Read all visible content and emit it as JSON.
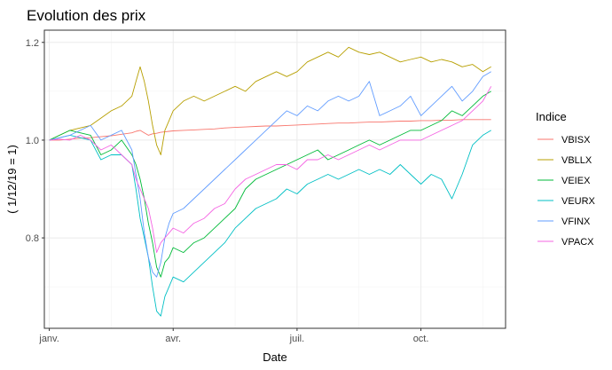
{
  "chart_data": {
    "type": "line",
    "title": "Evolution des prix",
    "xlabel": "Date",
    "ylabel": "( 1/12/19 = 1)",
    "x_ticks": [
      "janv.",
      "avr.",
      "juil.",
      "oct."
    ],
    "x_tick_months": [
      0,
      3,
      6,
      9
    ],
    "xlim_months": [
      -0.12,
      11.05
    ],
    "ylim": [
      0.615,
      1.225
    ],
    "y_ticks": [
      0.8,
      1.0,
      1.2
    ],
    "y_tick_labels": [
      "0.8",
      "1.0",
      "1.2"
    ],
    "grid": true,
    "legend_title": "Indice",
    "legend_position": "right",
    "x_months": [
      0,
      0.25,
      0.5,
      0.75,
      1.0,
      1.25,
      1.5,
      1.75,
      2.0,
      2.1,
      2.2,
      2.3,
      2.4,
      2.5,
      2.6,
      2.7,
      2.8,
      2.9,
      3.0,
      3.25,
      3.5,
      3.75,
      4.0,
      4.25,
      4.5,
      4.75,
      5.0,
      5.25,
      5.5,
      5.75,
      6.0,
      6.25,
      6.5,
      6.75,
      7.0,
      7.25,
      7.5,
      7.75,
      8.0,
      8.25,
      8.5,
      8.75,
      9.0,
      9.25,
      9.5,
      9.75,
      10.0,
      10.25,
      10.5,
      10.7
    ],
    "series": [
      {
        "name": "VBISX",
        "color": "#F8766D",
        "values": [
          1.0,
          1.0,
          1.002,
          1.004,
          1.005,
          1.007,
          1.009,
          1.012,
          1.015,
          1.018,
          1.02,
          1.015,
          1.01,
          1.013,
          1.014,
          1.016,
          1.017,
          1.018,
          1.019,
          1.02,
          1.021,
          1.022,
          1.023,
          1.025,
          1.026,
          1.027,
          1.028,
          1.029,
          1.029,
          1.03,
          1.031,
          1.032,
          1.033,
          1.034,
          1.035,
          1.035,
          1.036,
          1.037,
          1.037,
          1.038,
          1.039,
          1.039,
          1.04,
          1.04,
          1.041,
          1.041,
          1.042,
          1.042,
          1.042,
          1.042
        ]
      },
      {
        "name": "VBLLX",
        "color": "#B79F00",
        "values": [
          1.0,
          1.01,
          1.02,
          1.025,
          1.03,
          1.045,
          1.06,
          1.07,
          1.09,
          1.12,
          1.15,
          1.12,
          1.08,
          1.03,
          0.99,
          0.97,
          1.02,
          1.04,
          1.06,
          1.08,
          1.09,
          1.08,
          1.09,
          1.1,
          1.11,
          1.1,
          1.12,
          1.13,
          1.14,
          1.13,
          1.14,
          1.16,
          1.17,
          1.18,
          1.17,
          1.19,
          1.18,
          1.175,
          1.18,
          1.17,
          1.16,
          1.165,
          1.17,
          1.16,
          1.165,
          1.16,
          1.15,
          1.155,
          1.14,
          1.15
        ]
      },
      {
        "name": "VEIEX",
        "color": "#00BA38",
        "values": [
          1.0,
          1.01,
          1.02,
          1.015,
          1.01,
          0.97,
          0.98,
          1.0,
          0.97,
          0.95,
          0.92,
          0.88,
          0.83,
          0.79,
          0.74,
          0.72,
          0.75,
          0.76,
          0.78,
          0.77,
          0.79,
          0.8,
          0.82,
          0.84,
          0.86,
          0.9,
          0.92,
          0.93,
          0.94,
          0.95,
          0.96,
          0.97,
          0.98,
          0.96,
          0.97,
          0.98,
          0.99,
          1.0,
          0.99,
          1.0,
          1.01,
          1.02,
          1.02,
          1.03,
          1.04,
          1.06,
          1.05,
          1.07,
          1.09,
          1.1
        ]
      },
      {
        "name": "VEURX",
        "color": "#00BFC4",
        "values": [
          1.0,
          1.005,
          1.01,
          1.005,
          1.0,
          0.96,
          0.97,
          0.97,
          0.95,
          0.9,
          0.84,
          0.8,
          0.76,
          0.7,
          0.65,
          0.64,
          0.68,
          0.7,
          0.72,
          0.71,
          0.73,
          0.75,
          0.77,
          0.79,
          0.82,
          0.84,
          0.86,
          0.87,
          0.88,
          0.9,
          0.89,
          0.91,
          0.92,
          0.93,
          0.92,
          0.93,
          0.94,
          0.93,
          0.94,
          0.93,
          0.95,
          0.93,
          0.91,
          0.93,
          0.92,
          0.88,
          0.93,
          0.99,
          1.01,
          1.02
        ]
      },
      {
        "name": "VFINX",
        "color": "#619CFF",
        "values": [
          1.0,
          1.005,
          1.01,
          1.02,
          1.03,
          1.0,
          1.01,
          1.02,
          0.98,
          0.93,
          0.88,
          0.81,
          0.76,
          0.73,
          0.72,
          0.75,
          0.8,
          0.83,
          0.85,
          0.86,
          0.88,
          0.9,
          0.92,
          0.94,
          0.96,
          0.98,
          1.0,
          1.02,
          1.04,
          1.06,
          1.05,
          1.07,
          1.06,
          1.08,
          1.09,
          1.08,
          1.09,
          1.12,
          1.05,
          1.06,
          1.07,
          1.09,
          1.05,
          1.07,
          1.09,
          1.11,
          1.08,
          1.1,
          1.13,
          1.14
        ]
      },
      {
        "name": "VPACX",
        "color": "#F564E3",
        "values": [
          1.0,
          1.002,
          1.0,
          1.01,
          1.0,
          0.98,
          0.99,
          0.97,
          0.95,
          0.92,
          0.9,
          0.88,
          0.86,
          0.82,
          0.77,
          0.79,
          0.8,
          0.81,
          0.82,
          0.81,
          0.83,
          0.84,
          0.86,
          0.87,
          0.9,
          0.92,
          0.93,
          0.94,
          0.95,
          0.95,
          0.94,
          0.96,
          0.96,
          0.97,
          0.96,
          0.97,
          0.98,
          0.99,
          0.98,
          0.99,
          1.0,
          1.0,
          1.0,
          1.01,
          1.02,
          1.03,
          1.04,
          1.06,
          1.08,
          1.11
        ]
      }
    ]
  }
}
